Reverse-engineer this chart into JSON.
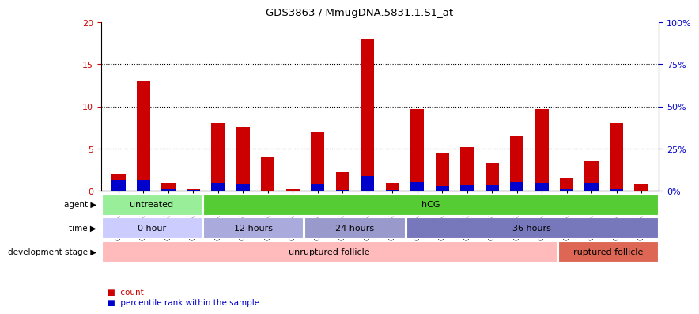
{
  "title": "GDS3863 / MmugDNA.5831.1.S1_at",
  "samples": [
    "GSM563219",
    "GSM563220",
    "GSM563221",
    "GSM563222",
    "GSM563223",
    "GSM563224",
    "GSM563225",
    "GSM563226",
    "GSM563227",
    "GSM563228",
    "GSM563229",
    "GSM563230",
    "GSM563231",
    "GSM563232",
    "GSM563233",
    "GSM563234",
    "GSM563235",
    "GSM563236",
    "GSM563237",
    "GSM563238",
    "GSM563239",
    "GSM563240"
  ],
  "count_values": [
    2.0,
    13.0,
    1.0,
    0.2,
    8.0,
    7.5,
    4.0,
    0.2,
    7.0,
    2.2,
    18.0,
    1.0,
    9.7,
    4.4,
    5.2,
    3.3,
    6.5,
    9.7,
    1.5,
    3.5,
    8.0,
    0.8
  ],
  "percentile_values": [
    6.5,
    6.5,
    1.0,
    0.5,
    4.5,
    3.8,
    0.3,
    0.3,
    4.0,
    0.4,
    8.5,
    0.5,
    5.2,
    2.7,
    3.3,
    3.5,
    5.2,
    5.0,
    1.0,
    4.5,
    1.0,
    0.3
  ],
  "ylim_left": [
    0,
    20
  ],
  "ylim_right": [
    0,
    100
  ],
  "yticks_left": [
    0,
    5,
    10,
    15,
    20
  ],
  "yticks_right": [
    0,
    25,
    50,
    75,
    100
  ],
  "bar_color": "#cc0000",
  "percentile_color": "#0000cc",
  "bg_color": "#ffffff",
  "agent_untreated_color": "#99ee99",
  "agent_hcg_color": "#55cc33",
  "time_0h_color": "#ccccff",
  "time_12h_color": "#aaaadd",
  "time_24h_color": "#9999cc",
  "time_36h_color": "#7777bb",
  "stage_unruptured_color": "#ffbbbb",
  "stage_ruptured_color": "#dd6655",
  "agent_spans": [
    {
      "label": "untreated",
      "start": 0,
      "end": 4
    },
    {
      "label": "hCG",
      "start": 4,
      "end": 22
    }
  ],
  "time_spans": [
    {
      "label": "0 hour",
      "start": 0,
      "end": 4
    },
    {
      "label": "12 hours",
      "start": 4,
      "end": 8
    },
    {
      "label": "24 hours",
      "start": 8,
      "end": 12
    },
    {
      "label": "36 hours",
      "start": 12,
      "end": 22
    }
  ],
  "stage_spans": [
    {
      "label": "unruptured follicle",
      "start": 0,
      "end": 18
    },
    {
      "label": "ruptured follicle",
      "start": 18,
      "end": 22
    }
  ],
  "row_labels": [
    "agent",
    "time",
    "development stage"
  ]
}
